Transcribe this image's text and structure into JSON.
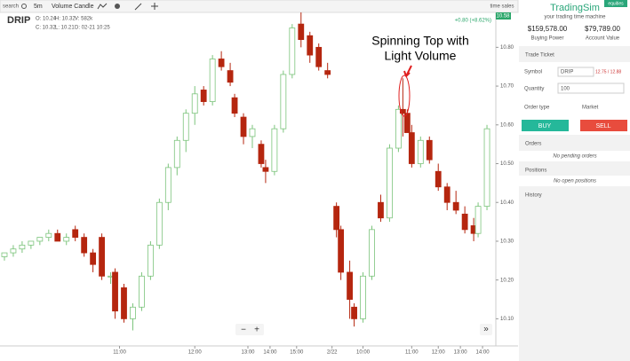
{
  "ui": {
    "search": "search",
    "interval": "5m",
    "chart_style": "Volume Candle",
    "time_sales": "time sales",
    "symbol": "DRIP",
    "o": "O: 10.24",
    "h": "H: 10.32",
    "v": "V: 582k",
    "c": "C: 10.32",
    "l": "L: 10.21",
    "d": "D: 02-21 10:25",
    "change": "+0.80 (+8.62%)",
    "last": "10.58",
    "zoom_out": "−",
    "zoom_in": "+",
    "forward": "»",
    "brand": "TradingSim",
    "tagline": "your trading time machine",
    "badge": "equities",
    "buying_power": "$159,578.00",
    "buying_power_label": "Buying Power",
    "account_value": "$79,789.00",
    "account_value_label": "Account Value",
    "trade_ticket": "Trade Ticket",
    "symbol_label": "Symbol",
    "symbol_value": "DRIP",
    "bid_ask": "12.75 / 12.88",
    "quantity_label": "Quantity",
    "quantity_value": "100",
    "order_type_label": "Order type",
    "order_type_value": "Market",
    "buy": "BUY",
    "sell": "SELL",
    "orders": "Orders",
    "no_orders": "No pending orders",
    "positions": "Positions",
    "no_positions": "No open positions",
    "history": "History"
  },
  "chart_data": {
    "type": "candlestick",
    "annotation": [
      "Spinning Top with",
      "Light Volume"
    ],
    "up_color": "#7cc47c",
    "down_color": "#b5260f",
    "x": [
      0,
      2,
      4,
      6,
      8,
      10,
      12,
      14,
      16,
      18,
      20,
      22,
      24,
      25,
      27,
      29,
      31,
      33,
      35,
      37,
      39,
      41,
      43,
      45,
      47,
      49,
      51,
      52,
      54,
      56,
      58,
      59,
      61,
      63,
      65,
      67,
      69,
      71,
      73,
      75,
      76,
      78,
      79,
      81,
      83,
      85,
      87,
      89,
      90,
      91,
      92,
      94,
      96,
      98,
      100,
      102,
      104,
      106,
      107,
      109
    ],
    "open": [
      10.26,
      10.27,
      10.28,
      10.29,
      10.3,
      10.31,
      10.32,
      10.3,
      10.33,
      10.31,
      10.27,
      10.31,
      10.21,
      10.22,
      10.18,
      10.1,
      10.13,
      10.21,
      10.29,
      10.4,
      10.49,
      10.56,
      10.63,
      10.69,
      10.66,
      10.77,
      10.74,
      10.67,
      10.62,
      10.57,
      10.55,
      10.49,
      10.48,
      10.59,
      10.73,
      10.86,
      10.83,
      10.8,
      10.74,
      10.39,
      10.33,
      10.22,
      10.13,
      10.1,
      10.21,
      10.4,
      10.36,
      10.54,
      10.64,
      10.63,
      10.58,
      10.5,
      10.56,
      10.48,
      10.44,
      10.4,
      10.37,
      10.34,
      10.32,
      10.39
    ],
    "high": [
      10.27,
      10.29,
      10.3,
      10.3,
      10.31,
      10.33,
      10.33,
      10.32,
      10.34,
      10.32,
      10.28,
      10.32,
      10.22,
      10.23,
      10.19,
      10.14,
      10.22,
      10.3,
      10.41,
      10.5,
      10.57,
      10.64,
      10.7,
      10.7,
      10.78,
      10.79,
      10.76,
      10.68,
      10.63,
      10.6,
      10.56,
      10.51,
      10.6,
      10.74,
      10.86,
      10.89,
      10.84,
      10.81,
      10.76,
      10.4,
      10.34,
      10.25,
      10.14,
      10.22,
      10.34,
      10.42,
      10.55,
      10.65,
      10.72,
      10.64,
      10.6,
      10.57,
      10.57,
      10.5,
      10.45,
      10.43,
      10.39,
      10.36,
      10.4,
      10.6
    ],
    "low": [
      10.25,
      10.26,
      10.27,
      10.28,
      10.29,
      10.3,
      10.3,
      10.29,
      10.3,
      10.26,
      10.22,
      10.2,
      10.19,
      10.1,
      10.09,
      10.07,
      10.12,
      10.2,
      10.28,
      10.38,
      10.47,
      10.53,
      10.6,
      10.65,
      10.65,
      10.74,
      10.7,
      10.62,
      10.55,
      10.54,
      10.49,
      10.45,
      10.47,
      10.58,
      10.72,
      10.8,
      10.76,
      10.74,
      10.72,
      10.31,
      10.2,
      10.1,
      10.08,
      10.09,
      10.2,
      10.35,
      10.35,
      10.53,
      10.57,
      10.58,
      10.49,
      10.49,
      10.5,
      10.43,
      10.38,
      10.37,
      10.32,
      10.3,
      10.31,
      10.38
    ],
    "close": [
      10.27,
      10.28,
      10.29,
      10.3,
      10.31,
      10.32,
      10.3,
      10.31,
      10.31,
      10.27,
      10.24,
      10.21,
      10.21,
      10.12,
      10.1,
      10.13,
      10.21,
      10.29,
      10.4,
      10.49,
      10.56,
      10.63,
      10.68,
      10.66,
      10.77,
      10.75,
      10.71,
      10.63,
      10.57,
      10.59,
      10.5,
      10.48,
      10.59,
      10.73,
      10.85,
      10.82,
      10.78,
      10.75,
      10.73,
      10.33,
      10.22,
      10.15,
      10.1,
      10.21,
      10.33,
      10.36,
      10.54,
      10.64,
      10.63,
      10.58,
      10.5,
      10.56,
      10.51,
      10.44,
      10.4,
      10.38,
      10.33,
      10.32,
      10.39,
      10.59
    ],
    "xlim": [
      -1,
      111
    ],
    "xticks": [
      {
        "value": 26,
        "label": "11:00"
      },
      {
        "value": 43,
        "label": "12:00"
      },
      {
        "value": 55,
        "label": "13:00"
      },
      {
        "value": 60,
        "label": "14:00"
      },
      {
        "value": 66,
        "label": "15:00"
      },
      {
        "value": 74,
        "label": "2/22"
      },
      {
        "value": 81,
        "label": "10:00"
      },
      {
        "value": 92,
        "label": "11:00"
      },
      {
        "value": 98,
        "label": "12:00"
      },
      {
        "value": 103,
        "label": "13:00"
      },
      {
        "value": 108,
        "label": "14:00"
      }
    ],
    "ylim": [
      10.03,
      10.89
    ],
    "yticks": [
      {
        "value": 10.1,
        "label": "10.10"
      },
      {
        "value": 10.2,
        "label": "10.20"
      },
      {
        "value": 10.3,
        "label": "10.30"
      },
      {
        "value": 10.4,
        "label": "10.40"
      },
      {
        "value": 10.5,
        "label": "10.50"
      },
      {
        "value": 10.6,
        "label": "10.60"
      },
      {
        "value": 10.7,
        "label": "10.70"
      },
      {
        "value": 10.8,
        "label": "10.80"
      }
    ]
  }
}
